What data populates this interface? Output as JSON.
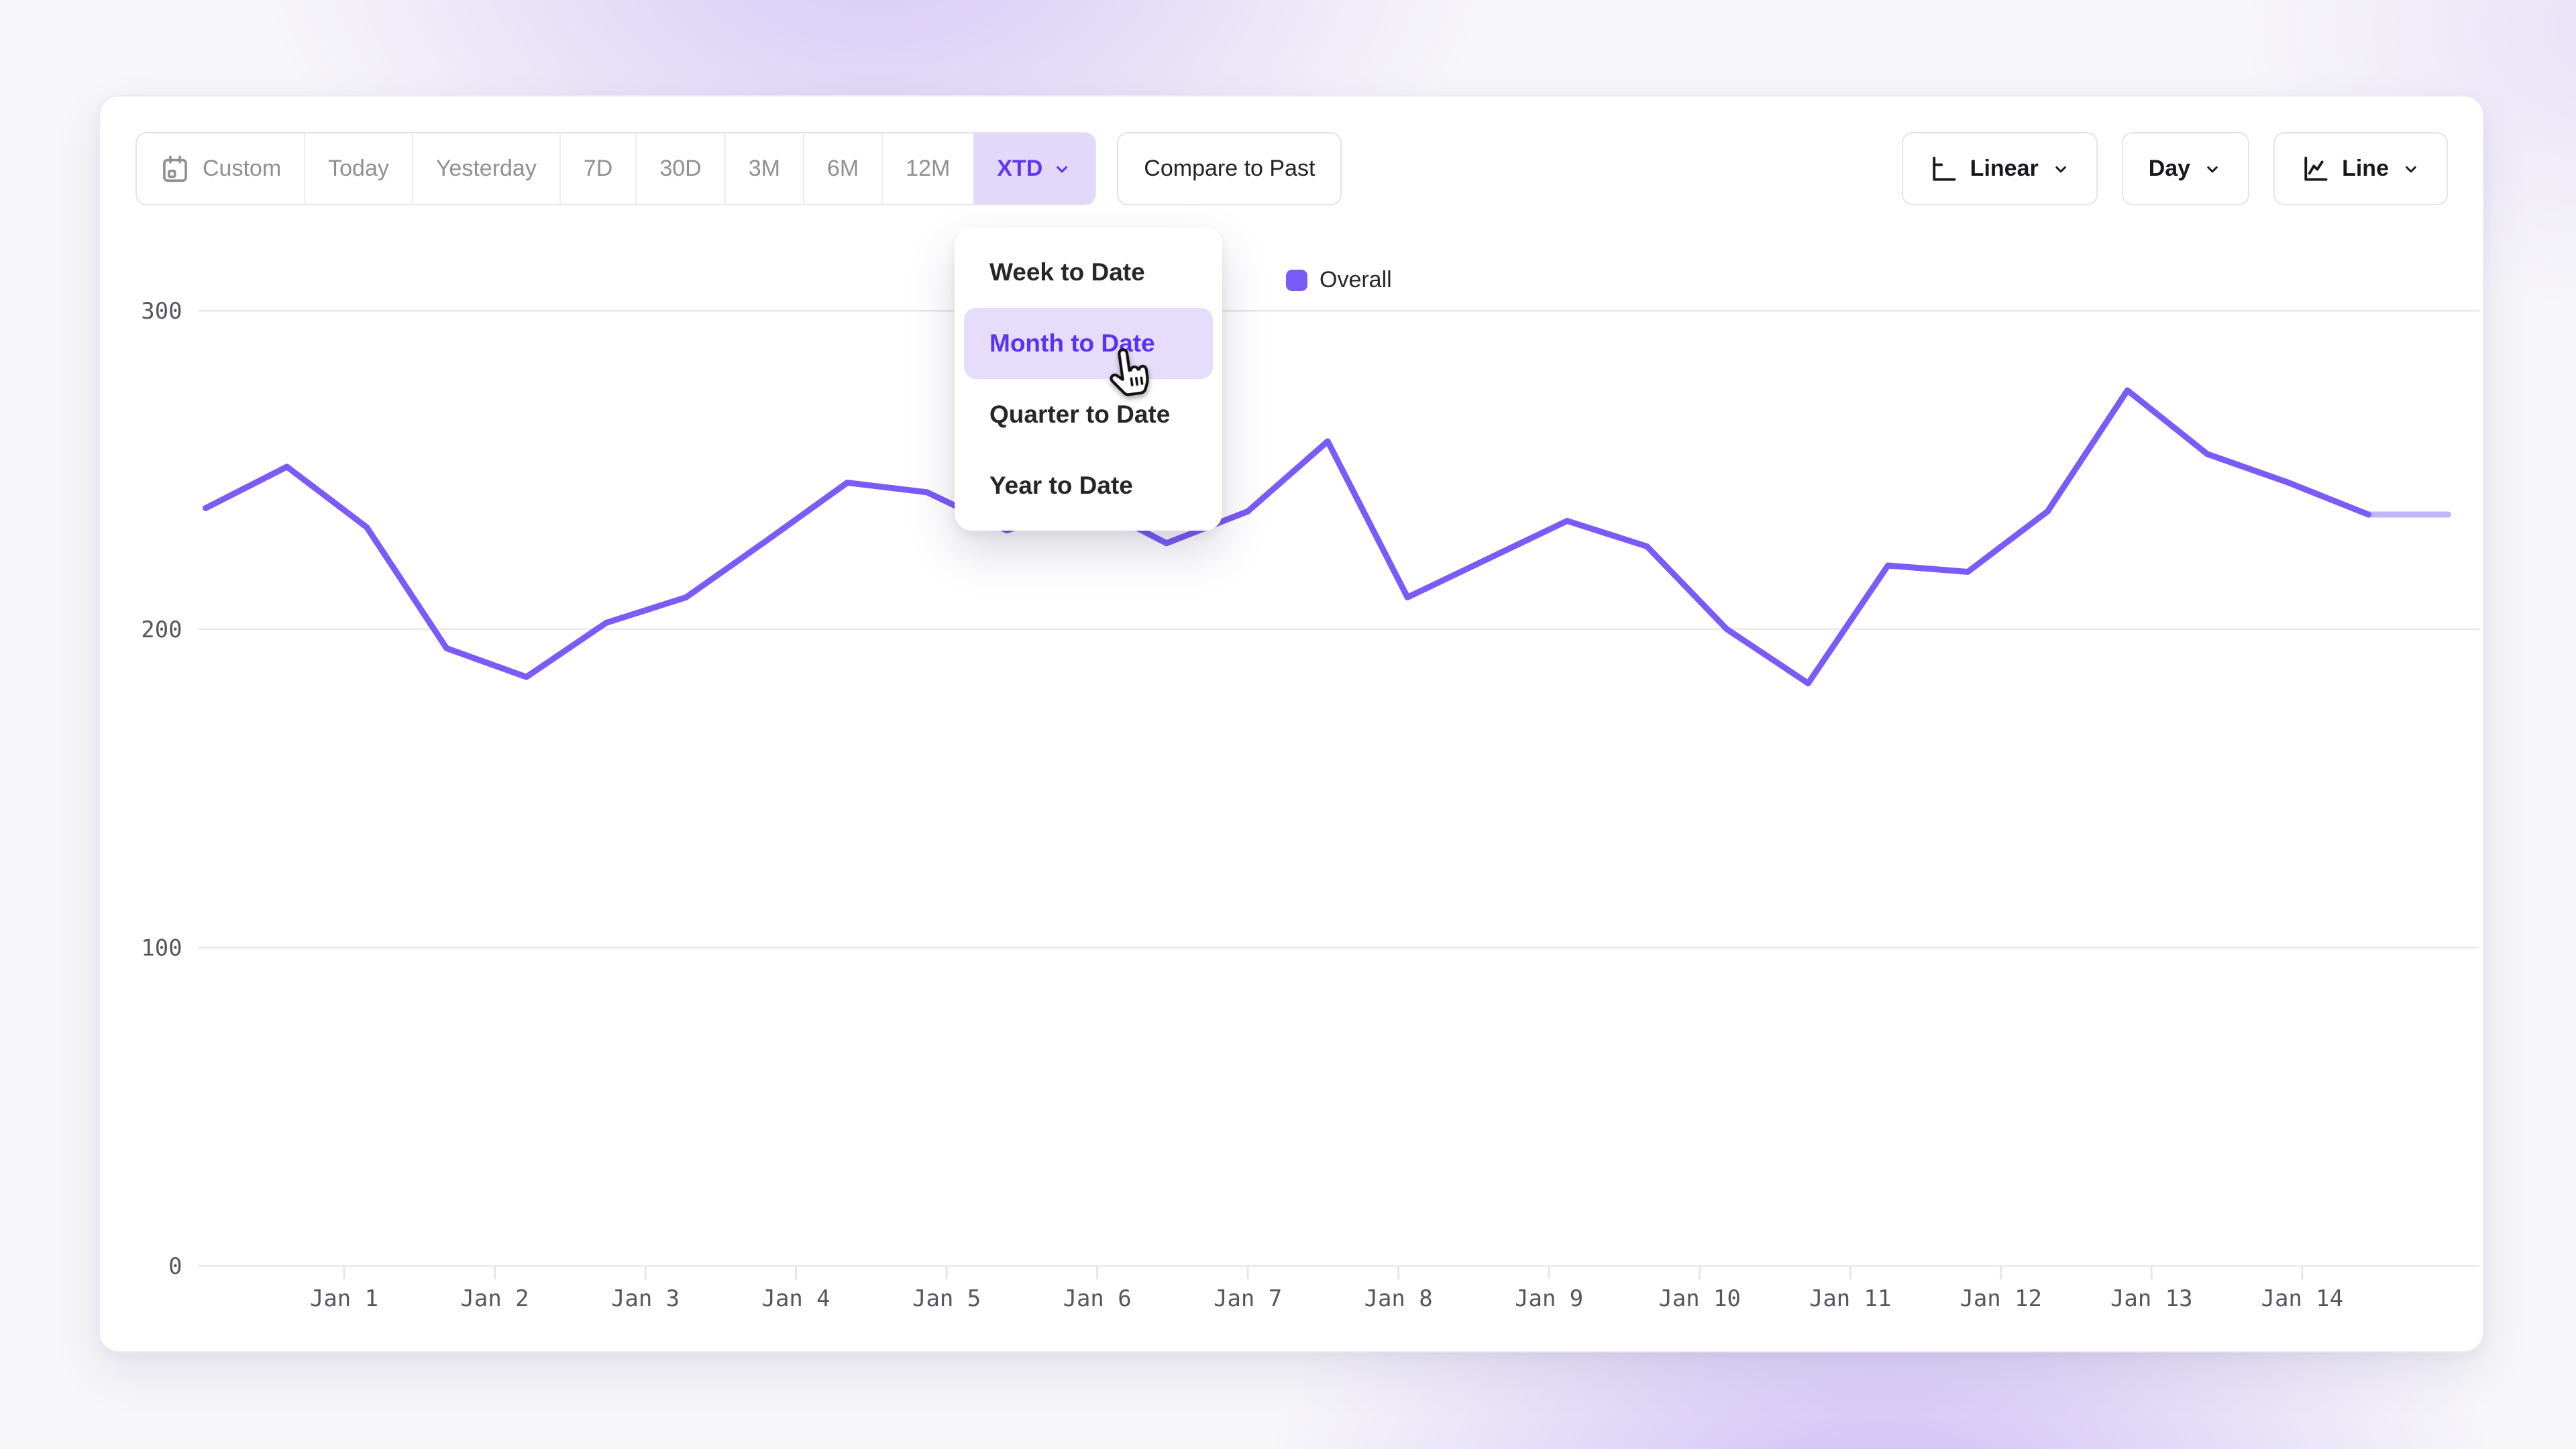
{
  "toolbar": {
    "ranges": [
      {
        "label": "Custom",
        "icon": "calendar",
        "active": false
      },
      {
        "label": "Today",
        "active": false
      },
      {
        "label": "Yesterday",
        "active": false
      },
      {
        "label": "7D",
        "active": false
      },
      {
        "label": "30D",
        "active": false
      },
      {
        "label": "3M",
        "active": false
      },
      {
        "label": "6M",
        "active": false
      },
      {
        "label": "12M",
        "active": false
      },
      {
        "label": "XTD",
        "active": true,
        "has_chevron": true
      }
    ],
    "compare_button_label": "Compare to Past",
    "scale_control": {
      "label": "Linear",
      "icon": "axis-linear-icon"
    },
    "granularity_control": {
      "label": "Day"
    },
    "chart_type_control": {
      "label": "Line",
      "icon": "line-chart-icon"
    }
  },
  "xtd_dropdown": {
    "items": [
      {
        "label": "Week to Date",
        "active": false
      },
      {
        "label": "Month to Date",
        "active": true,
        "hovered": true
      },
      {
        "label": "Quarter to Date",
        "active": false
      },
      {
        "label": "Year to Date",
        "active": false
      }
    ]
  },
  "cursor": {
    "type": "pointer-hand",
    "over": "Month to Date"
  },
  "chart_data": {
    "type": "line",
    "title": "",
    "xlabel": "",
    "ylabel": "",
    "grid": true,
    "legend": {
      "label": "Overall",
      "position": "top-center",
      "color": "#7b5bf7"
    },
    "y_ticks": [
      0,
      100,
      200,
      300
    ],
    "ylim": [
      0,
      310
    ],
    "x_domain_days": [
      0,
      15.2
    ],
    "x_tick_days": [
      1,
      2,
      3,
      4,
      5,
      6,
      7,
      8,
      9,
      10,
      11,
      12,
      13,
      14
    ],
    "x_tick_labels": [
      "Jan 1",
      "Jan 2",
      "Jan 3",
      "Jan 4",
      "Jan 5",
      "Jan 6",
      "Jan 7",
      "Jan 8",
      "Jan 9",
      "Jan 10",
      "Jan 11",
      "Jan 12",
      "Jan 13",
      "Jan 14"
    ],
    "series": [
      {
        "name": "Overall",
        "color": "#7b5bf7",
        "x_days": [
          0.08,
          0.62,
          1.15,
          1.68,
          2.21,
          2.74,
          3.27,
          3.81,
          4.34,
          4.87,
          5.4,
          5.93,
          6.46,
          7.0,
          7.53,
          8.06,
          8.59,
          9.12,
          9.65,
          10.18,
          10.72,
          11.25,
          11.78,
          12.31,
          12.84,
          13.37,
          13.91,
          14.44,
          14.97
        ],
        "values": [
          238,
          251,
          232,
          194,
          185,
          202,
          210,
          228,
          246,
          243,
          231,
          240,
          227,
          237,
          259,
          210,
          222,
          234,
          226,
          200,
          183,
          220,
          218,
          237,
          275,
          255,
          246,
          236,
          236
        ]
      }
    ],
    "last_segment_style": "faded-partial-period"
  }
}
